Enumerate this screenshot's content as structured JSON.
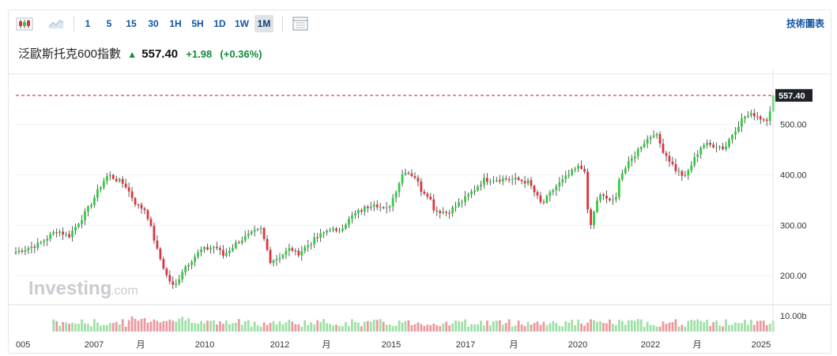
{
  "toolbar": {
    "intervals": [
      "1",
      "5",
      "15",
      "30",
      "1H",
      "5H",
      "1D",
      "1W",
      "1M"
    ],
    "active_interval": "1M",
    "tech_chart_label": "技術圖表"
  },
  "quote": {
    "name": "泛歐斯托克600指數",
    "price": "557.40",
    "change": "+1.98",
    "change_pct": "(+0.36%)"
  },
  "watermark": {
    "main": "Investing",
    "suffix": ".com"
  },
  "colors": {
    "up": "#2ecc40",
    "down": "#e0323c",
    "accent": "#1256a0",
    "last_line": "#c0202b"
  },
  "chart_data": {
    "type": "candlestick",
    "last_price": 557.4,
    "last_price_label": "557.40",
    "y_ticks": [
      200,
      300,
      400,
      500
    ],
    "y_tick_labels": [
      "200.00",
      "300.00",
      "400.00",
      "500.00"
    ],
    "ylim": [
      155,
      590
    ],
    "volume_tick_label": "10.00b",
    "x_tick_labels": [
      "005",
      "2007",
      "月",
      "2010",
      "2012",
      "月",
      "2015",
      "2017",
      "月",
      "2020",
      "2022",
      "月",
      "2025"
    ],
    "x_range": [
      2005.0,
      2025.08
    ],
    "series_anchors": [
      [
        2005.0,
        247
      ],
      [
        2005.6,
        262
      ],
      [
        2006.1,
        290
      ],
      [
        2006.4,
        278
      ],
      [
        2006.9,
        330
      ],
      [
        2007.3,
        385
      ],
      [
        2007.45,
        400
      ],
      [
        2007.9,
        380
      ],
      [
        2008.2,
        340
      ],
      [
        2008.45,
        330
      ],
      [
        2008.75,
        250
      ],
      [
        2009.0,
        200
      ],
      [
        2009.2,
        175
      ],
      [
        2009.45,
        215
      ],
      [
        2009.9,
        250
      ],
      [
        2010.3,
        258
      ],
      [
        2010.5,
        240
      ],
      [
        2010.9,
        268
      ],
      [
        2011.3,
        285
      ],
      [
        2011.5,
        292
      ],
      [
        2011.75,
        230
      ],
      [
        2011.95,
        235
      ],
      [
        2012.3,
        255
      ],
      [
        2012.45,
        242
      ],
      [
        2012.9,
        270
      ],
      [
        2013.35,
        295
      ],
      [
        2013.5,
        285
      ],
      [
        2013.95,
        320
      ],
      [
        2014.5,
        345
      ],
      [
        2014.8,
        328
      ],
      [
        2014.95,
        345
      ],
      [
        2015.3,
        410
      ],
      [
        2015.6,
        395
      ],
      [
        2015.75,
        370
      ],
      [
        2015.95,
        360
      ],
      [
        2016.1,
        330
      ],
      [
        2016.45,
        325
      ],
      [
        2016.7,
        340
      ],
      [
        2016.95,
        355
      ],
      [
        2017.4,
        390
      ],
      [
        2017.95,
        392
      ],
      [
        2018.3,
        390
      ],
      [
        2018.6,
        385
      ],
      [
        2018.95,
        340
      ],
      [
        2019.3,
        375
      ],
      [
        2019.9,
        415
      ],
      [
        2020.1,
        410
      ],
      [
        2020.2,
        285
      ],
      [
        2020.45,
        360
      ],
      [
        2020.9,
        345
      ],
      [
        2021.0,
        395
      ],
      [
        2021.6,
        460
      ],
      [
        2021.95,
        485
      ],
      [
        2022.15,
        450
      ],
      [
        2022.5,
        410
      ],
      [
        2022.75,
        395
      ],
      [
        2022.95,
        425
      ],
      [
        2023.2,
        460
      ],
      [
        2023.6,
        458
      ],
      [
        2023.8,
        452
      ],
      [
        2023.95,
        475
      ],
      [
        2024.3,
        515
      ],
      [
        2024.6,
        520
      ],
      [
        2024.8,
        510
      ],
      [
        2024.95,
        512
      ],
      [
        2025.08,
        557
      ]
    ]
  }
}
